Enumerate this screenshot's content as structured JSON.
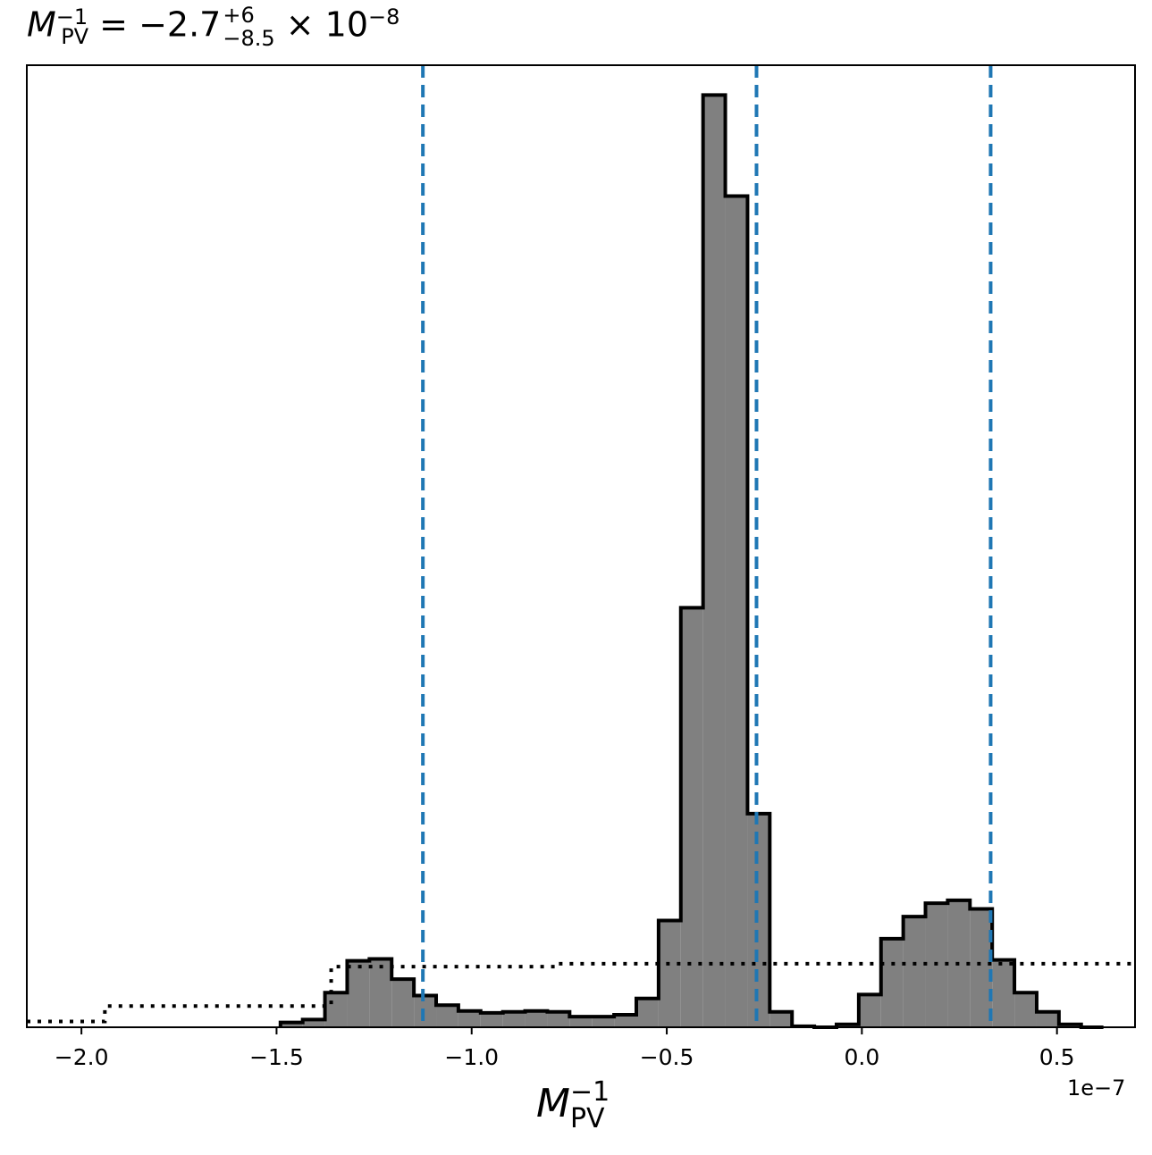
{
  "chart_data": {
    "type": "histogram",
    "title": {
      "base": "M",
      "base_sup": "−1",
      "base_sub": "PV",
      "equals": " = −2.7",
      "err_sup": "+6",
      "err_sub": "−8.5",
      "times": " × 10",
      "exp": "−8"
    },
    "xlabel": {
      "base": "M",
      "sup": "−1",
      "sub": "PV"
    },
    "x_offset_label": "1e−7",
    "xlim": [
      -2.14,
      0.7
    ],
    "x_scale": 1e-07,
    "xticks": [
      -2.0,
      -1.5,
      -1.0,
      -0.5,
      0.0,
      0.5
    ],
    "xtick_labels": [
      "−2.0",
      "−1.5",
      "−1.0",
      "−0.5",
      "0.0",
      "0.5"
    ],
    "yticks": [],
    "ylim": [
      0,
      1.0
    ],
    "posterior_hist": {
      "bin_start": -1.49,
      "bin_width": 0.057,
      "heights": [
        0.005,
        0.008,
        0.036,
        0.069,
        0.071,
        0.05,
        0.033,
        0.023,
        0.017,
        0.015,
        0.016,
        0.017,
        0.016,
        0.011,
        0.011,
        0.013,
        0.03,
        0.111,
        0.436,
        0.969,
        0.864,
        0.222,
        0.016,
        0.001,
        0.0,
        0.003,
        0.034,
        0.092,
        0.115,
        0.129,
        0.132,
        0.123,
        0.07,
        0.036,
        0.016,
        0.003,
        0.0
      ],
      "fill_color": "#808080",
      "edge_color": "#000000"
    },
    "prior_step": {
      "x": [
        -2.14,
        -1.94,
        -1.94,
        -1.36,
        -1.36,
        -0.78,
        -0.78,
        0.7
      ],
      "y": [
        0.006,
        0.006,
        0.022,
        0.022,
        0.063,
        0.063,
        0.066,
        0.066
      ],
      "style": "dotted",
      "color": "#000000"
    },
    "vlines": {
      "x": [
        -1.125,
        -0.27,
        0.33
      ],
      "style": "dashed",
      "color": "#1f77b4"
    }
  }
}
